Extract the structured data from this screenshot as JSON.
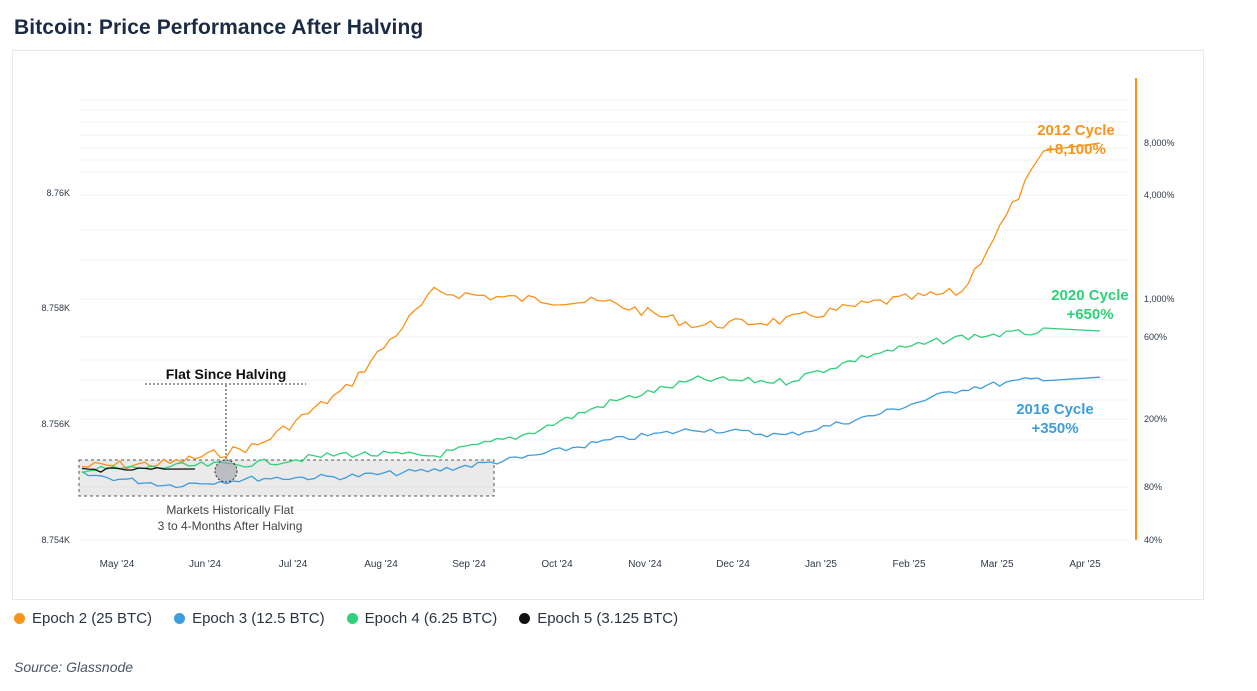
{
  "title": "Bitcoin: Price Performance After Halving",
  "source": "Source: Glassnode",
  "colors": {
    "epoch2": "#f7931a",
    "epoch3": "#3d9ddc",
    "epoch4": "#2fd07a",
    "epoch5": "#111111",
    "axis_right": "#f7931a"
  },
  "legend": [
    {
      "label": "Epoch 2 (25 BTC)",
      "color": "#f7931a"
    },
    {
      "label": "Epoch 3 (12.5 BTC)",
      "color": "#3d9ddc"
    },
    {
      "label": "Epoch 4 (6.25 BTC)",
      "color": "#2fd07a"
    },
    {
      "label": "Epoch 5 (3.125 BTC)",
      "color": "#111111"
    }
  ],
  "chart_data": {
    "type": "line",
    "title": "Bitcoin: Price Performance After Halving",
    "x_ticks": [
      "May '24",
      "Jun '24",
      "Jul '24",
      "Aug '24",
      "Sep '24",
      "Oct '24",
      "Nov '24",
      "Dec '24",
      "Jan '25",
      "Feb '25",
      "Mar '25",
      "Apr '25"
    ],
    "y_left_ticks": [
      "8.76K",
      "8.758K",
      "8.756K",
      "8.754K"
    ],
    "y_right_ticks": [
      "8,000%",
      "4,000%",
      "1,000%",
      "600%",
      "200%",
      "80%",
      "40%"
    ],
    "y_right_scale": "log",
    "grid": "horizontal",
    "legend_position": "bottom-left",
    "series": [
      {
        "name": "Epoch 2 (25 BTC)",
        "x": [
          "May '24",
          "Jun '24",
          "Jul '24",
          "Aug '24",
          "Sep '24",
          "Oct '24",
          "Nov '24",
          "Dec '24",
          "Jan '25",
          "Feb '25",
          "Mar '25",
          "Apr '25"
        ],
        "y": [
          105,
          110,
          140,
          300,
          1100,
          1000,
          950,
          700,
          750,
          950,
          1100,
          8100
        ]
      },
      {
        "name": "Epoch 3 (12.5 BTC)",
        "x": [
          "May '24",
          "Jun '24",
          "Jul '24",
          "Aug '24",
          "Sep '24",
          "Oct '24",
          "Nov '24",
          "Dec '24",
          "Jan '25",
          "Feb '25",
          "Mar '25",
          "Apr '25"
        ],
        "y": [
          95,
          82,
          90,
          92,
          100,
          118,
          150,
          175,
          160,
          210,
          300,
          350
        ]
      },
      {
        "name": "Epoch 4 (6.25 BTC)",
        "x": [
          "May '24",
          "Jun '24",
          "Jul '24",
          "Aug '24",
          "Sep '24",
          "Oct '24",
          "Nov '24",
          "Dec '24",
          "Jan '25",
          "Feb '25",
          "Mar '25",
          "Apr '25"
        ],
        "y": [
          100,
          105,
          110,
          125,
          122,
          160,
          250,
          340,
          330,
          480,
          600,
          650
        ]
      },
      {
        "name": "Epoch 5 (3.125 BTC)",
        "x": [
          "May '24",
          "Jun '24"
        ],
        "y": [
          100,
          102
        ]
      }
    ],
    "annotations": [
      {
        "text": "2012 Cycle",
        "value": "+8,100%"
      },
      {
        "text": "2020 Cycle",
        "value": "+650%"
      },
      {
        "text": "2016 Cycle",
        "value": "+350%"
      },
      {
        "text": "Flat Since Halving"
      },
      {
        "text": "Markets Historically Flat",
        "text2": "3 to 4-Months After Halving"
      }
    ]
  }
}
